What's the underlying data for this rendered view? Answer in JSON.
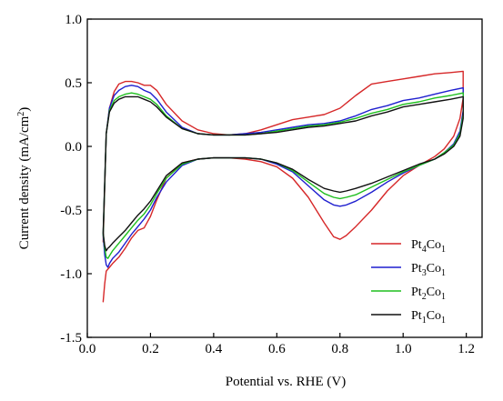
{
  "chart_data": {
    "type": "line",
    "title": "",
    "xlabel": "Potential vs. RHE (V)",
    "ylabel": {
      "main": "Current density (mA/cm",
      "sup": "2",
      "end": ")"
    },
    "xlim": [
      0.0,
      1.25
    ],
    "ylim": [
      -1.5,
      1.0
    ],
    "xticks": [
      0.0,
      0.2,
      0.4,
      0.6,
      0.8,
      1.0,
      1.2
    ],
    "xtick_labels": [
      "0.0",
      "0.2",
      "0.4",
      "0.6",
      "0.8",
      "1.0",
      "1.2"
    ],
    "yticks": [
      1.0,
      0.5,
      0.0,
      -0.5,
      -1.0,
      -1.5
    ],
    "ytick_labels": [
      "1.0",
      "0.5",
      "0.0",
      "-0.5",
      "-1.0",
      "-1.5"
    ],
    "grid": false,
    "legend_position": "bottom-right",
    "series": [
      {
        "name": {
          "a": "Pt",
          "sa": "4",
          "b": "Co",
          "sb": "1"
        },
        "color": "#d62728",
        "x": [
          0.05,
          0.06,
          0.07,
          0.085,
          0.1,
          0.12,
          0.14,
          0.16,
          0.18,
          0.2,
          0.22,
          0.25,
          0.3,
          0.35,
          0.4,
          0.45,
          0.5,
          0.55,
          0.6,
          0.65,
          0.7,
          0.75,
          0.8,
          0.85,
          0.9,
          0.95,
          1.0,
          1.05,
          1.1,
          1.15,
          1.19,
          1.19,
          1.18,
          1.16,
          1.13,
          1.1,
          1.05,
          1.0,
          0.95,
          0.9,
          0.85,
          0.82,
          0.8,
          0.78,
          0.75,
          0.7,
          0.65,
          0.6,
          0.55,
          0.5,
          0.45,
          0.4,
          0.35,
          0.3,
          0.25,
          0.22,
          0.2,
          0.18,
          0.16,
          0.14,
          0.12,
          0.1,
          0.08,
          0.07,
          0.06,
          0.055,
          0.05
        ],
        "y": [
          -0.75,
          0.1,
          0.3,
          0.43,
          0.49,
          0.51,
          0.51,
          0.5,
          0.48,
          0.48,
          0.44,
          0.33,
          0.2,
          0.13,
          0.1,
          0.09,
          0.1,
          0.13,
          0.17,
          0.21,
          0.23,
          0.25,
          0.3,
          0.4,
          0.49,
          0.51,
          0.53,
          0.55,
          0.57,
          0.58,
          0.59,
          0.38,
          0.22,
          0.08,
          -0.02,
          -0.08,
          -0.15,
          -0.23,
          -0.35,
          -0.5,
          -0.63,
          -0.7,
          -0.73,
          -0.71,
          -0.6,
          -0.4,
          -0.25,
          -0.16,
          -0.12,
          -0.1,
          -0.09,
          -0.09,
          -0.1,
          -0.13,
          -0.25,
          -0.42,
          -0.55,
          -0.64,
          -0.66,
          -0.72,
          -0.8,
          -0.87,
          -0.92,
          -0.95,
          -0.98,
          -1.08,
          -1.22
        ]
      },
      {
        "name": {
          "a": "Pt",
          "sa": "3",
          "b": "Co",
          "sb": "1"
        },
        "color": "#1f1fcf",
        "x": [
          0.05,
          0.06,
          0.07,
          0.085,
          0.1,
          0.12,
          0.14,
          0.16,
          0.18,
          0.2,
          0.22,
          0.25,
          0.3,
          0.35,
          0.4,
          0.45,
          0.5,
          0.55,
          0.6,
          0.65,
          0.7,
          0.75,
          0.8,
          0.85,
          0.9,
          0.95,
          1.0,
          1.05,
          1.1,
          1.15,
          1.19,
          1.19,
          1.18,
          1.16,
          1.13,
          1.1,
          1.05,
          1.0,
          0.95,
          0.9,
          0.85,
          0.82,
          0.8,
          0.78,
          0.75,
          0.7,
          0.65,
          0.6,
          0.55,
          0.5,
          0.45,
          0.4,
          0.35,
          0.3,
          0.25,
          0.22,
          0.2,
          0.18,
          0.16,
          0.14,
          0.12,
          0.1,
          0.08,
          0.07,
          0.065,
          0.06,
          0.055,
          0.05
        ],
        "y": [
          -0.7,
          0.1,
          0.3,
          0.4,
          0.44,
          0.47,
          0.48,
          0.47,
          0.44,
          0.42,
          0.37,
          0.27,
          0.15,
          0.1,
          0.09,
          0.09,
          0.1,
          0.11,
          0.13,
          0.15,
          0.17,
          0.18,
          0.2,
          0.24,
          0.29,
          0.32,
          0.36,
          0.38,
          0.41,
          0.44,
          0.46,
          0.28,
          0.12,
          0.02,
          -0.05,
          -0.1,
          -0.15,
          -0.21,
          -0.28,
          -0.36,
          -0.43,
          -0.46,
          -0.47,
          -0.46,
          -0.42,
          -0.31,
          -0.2,
          -0.14,
          -0.1,
          -0.09,
          -0.09,
          -0.09,
          -0.1,
          -0.15,
          -0.28,
          -0.4,
          -0.5,
          -0.57,
          -0.63,
          -0.69,
          -0.76,
          -0.83,
          -0.88,
          -0.92,
          -0.95,
          -0.93,
          -0.85,
          -0.7
        ]
      },
      {
        "name": {
          "a": "Pt",
          "sa": "2",
          "b": "Co",
          "sb": "1"
        },
        "color": "#1fbf1f",
        "x": [
          0.05,
          0.06,
          0.07,
          0.085,
          0.1,
          0.12,
          0.14,
          0.16,
          0.18,
          0.2,
          0.22,
          0.25,
          0.3,
          0.35,
          0.4,
          0.45,
          0.5,
          0.55,
          0.6,
          0.65,
          0.7,
          0.75,
          0.8,
          0.85,
          0.9,
          0.95,
          1.0,
          1.05,
          1.1,
          1.15,
          1.19,
          1.19,
          1.18,
          1.16,
          1.13,
          1.1,
          1.05,
          1.0,
          0.95,
          0.9,
          0.85,
          0.82,
          0.8,
          0.78,
          0.75,
          0.7,
          0.65,
          0.6,
          0.55,
          0.5,
          0.45,
          0.4,
          0.35,
          0.3,
          0.25,
          0.22,
          0.2,
          0.18,
          0.16,
          0.14,
          0.12,
          0.1,
          0.08,
          0.07,
          0.065,
          0.06,
          0.055,
          0.05
        ],
        "y": [
          -0.7,
          0.1,
          0.28,
          0.36,
          0.39,
          0.41,
          0.42,
          0.41,
          0.39,
          0.37,
          0.33,
          0.24,
          0.14,
          0.1,
          0.09,
          0.09,
          0.09,
          0.1,
          0.12,
          0.14,
          0.16,
          0.17,
          0.19,
          0.22,
          0.26,
          0.29,
          0.33,
          0.35,
          0.38,
          0.4,
          0.42,
          0.25,
          0.1,
          0.01,
          -0.05,
          -0.1,
          -0.15,
          -0.2,
          -0.26,
          -0.32,
          -0.38,
          -0.4,
          -0.41,
          -0.4,
          -0.37,
          -0.28,
          -0.19,
          -0.13,
          -0.1,
          -0.09,
          -0.09,
          -0.09,
          -0.1,
          -0.14,
          -0.25,
          -0.37,
          -0.46,
          -0.53,
          -0.58,
          -0.64,
          -0.7,
          -0.76,
          -0.82,
          -0.86,
          -0.88,
          -0.87,
          -0.8,
          -0.68
        ]
      },
      {
        "name": {
          "a": "Pt",
          "sa": "1",
          "b": "Co",
          "sb": "1"
        },
        "color": "#111111",
        "x": [
          0.05,
          0.06,
          0.07,
          0.085,
          0.1,
          0.12,
          0.14,
          0.16,
          0.18,
          0.2,
          0.22,
          0.25,
          0.3,
          0.35,
          0.4,
          0.45,
          0.5,
          0.55,
          0.6,
          0.65,
          0.7,
          0.75,
          0.8,
          0.85,
          0.9,
          0.95,
          1.0,
          1.05,
          1.1,
          1.15,
          1.19,
          1.19,
          1.18,
          1.16,
          1.13,
          1.1,
          1.05,
          1.0,
          0.95,
          0.9,
          0.85,
          0.82,
          0.8,
          0.78,
          0.75,
          0.7,
          0.65,
          0.6,
          0.55,
          0.5,
          0.45,
          0.4,
          0.35,
          0.3,
          0.25,
          0.22,
          0.2,
          0.18,
          0.16,
          0.14,
          0.12,
          0.1,
          0.08,
          0.07,
          0.065,
          0.06,
          0.055,
          0.05
        ],
        "y": [
          -0.68,
          0.1,
          0.27,
          0.34,
          0.37,
          0.39,
          0.39,
          0.39,
          0.37,
          0.35,
          0.31,
          0.23,
          0.14,
          0.1,
          0.09,
          0.09,
          0.09,
          0.1,
          0.11,
          0.13,
          0.15,
          0.16,
          0.18,
          0.2,
          0.24,
          0.27,
          0.31,
          0.33,
          0.35,
          0.37,
          0.39,
          0.22,
          0.08,
          0.0,
          -0.06,
          -0.1,
          -0.14,
          -0.19,
          -0.24,
          -0.29,
          -0.33,
          -0.35,
          -0.36,
          -0.35,
          -0.33,
          -0.26,
          -0.18,
          -0.13,
          -0.1,
          -0.09,
          -0.09,
          -0.09,
          -0.1,
          -0.13,
          -0.23,
          -0.35,
          -0.43,
          -0.49,
          -0.54,
          -0.6,
          -0.66,
          -0.71,
          -0.76,
          -0.79,
          -0.8,
          -0.82,
          -0.78,
          -0.68
        ]
      }
    ]
  }
}
